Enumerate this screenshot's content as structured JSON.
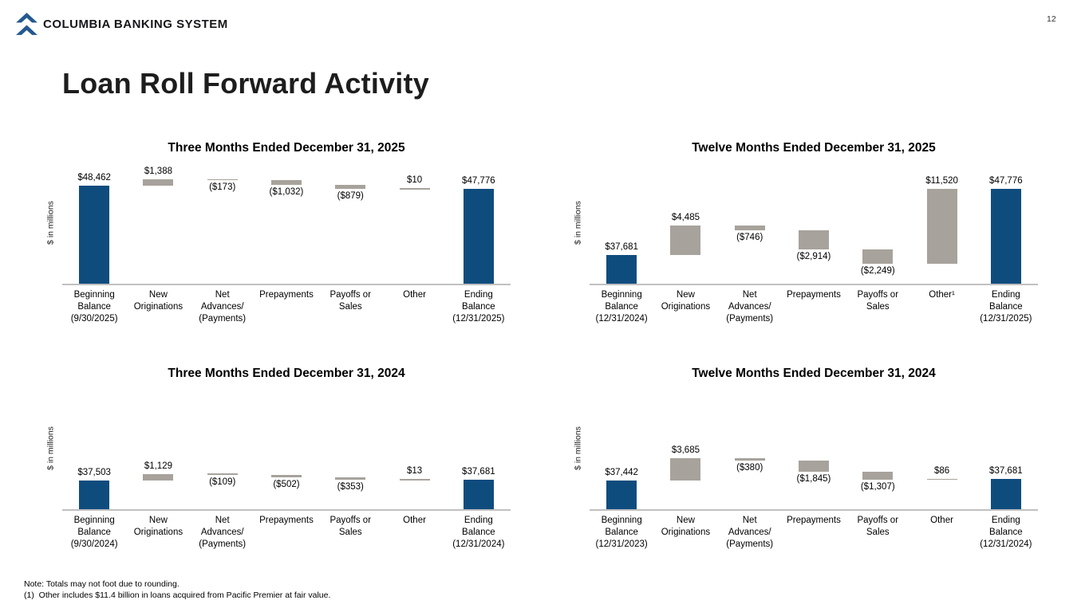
{
  "page_number": "12",
  "brand": {
    "name": "COLUMBIA BANKING SYSTEM",
    "logo_icon": "double-chevron-up"
  },
  "slide_title": "Loan Roll Forward Activity",
  "footnotes": {
    "note": "Note: Totals may not foot due to rounding.",
    "footnote_1": "(1)  Other includes $11.4 billion in loans acquired from Pacific Premier at fair value."
  },
  "colors": {
    "bar_total_blue": "#0f4c7e",
    "bar_delta_gray": "#a7a29b",
    "axis_line": "#c0c0c0",
    "logo_blue": "#24598f"
  },
  "chart_data": [
    {
      "type": "waterfall",
      "title": "Three Months Ended December 31, 2025",
      "ylabel": "$ in millions",
      "grid": false,
      "legend": false,
      "bars": [
        {
          "category_lines": [
            "Beginning",
            "Balance",
            "(9/30/2025)"
          ],
          "role": "total",
          "value": 48462,
          "label": "$48,462"
        },
        {
          "category_lines": [
            "New",
            "Originations"
          ],
          "role": "delta",
          "value": 1388,
          "label": "$1,388"
        },
        {
          "category_lines": [
            "Net",
            "Advances/",
            "(Payments)"
          ],
          "role": "delta",
          "value": -173,
          "label": "($173)"
        },
        {
          "category_lines": [
            "Prepayments"
          ],
          "role": "delta",
          "value": -1032,
          "label": "($1,032)"
        },
        {
          "category_lines": [
            "Payoffs or",
            "Sales"
          ],
          "role": "delta",
          "value": -879,
          "label": "($879)"
        },
        {
          "category_lines": [
            "Other"
          ],
          "role": "delta",
          "value": 10,
          "label": "$10"
        },
        {
          "category_lines": [
            "Ending",
            "Balance",
            "(12/31/2025)"
          ],
          "role": "total",
          "value": 47776,
          "label": "$47,776"
        }
      ]
    },
    {
      "type": "waterfall",
      "title": "Twelve Months Ended December 31, 2025",
      "ylabel": "$ in millions",
      "grid": false,
      "legend": false,
      "bars": [
        {
          "category_lines": [
            "Beginning",
            "Balance",
            "(12/31/2024)"
          ],
          "role": "total",
          "value": 37681,
          "label": "$37,681"
        },
        {
          "category_lines": [
            "New",
            "Originations"
          ],
          "role": "delta",
          "value": 4485,
          "label": "$4,485"
        },
        {
          "category_lines": [
            "Net",
            "Advances/",
            "(Payments)"
          ],
          "role": "delta",
          "value": -746,
          "label": "($746)"
        },
        {
          "category_lines": [
            "Prepayments"
          ],
          "role": "delta",
          "value": -2914,
          "label": "($2,914)"
        },
        {
          "category_lines": [
            "Payoffs or",
            "Sales"
          ],
          "role": "delta",
          "value": -2249,
          "label": "($2,249)"
        },
        {
          "category_lines": [
            "Other¹"
          ],
          "role": "delta",
          "value": 11520,
          "label": "$11,520"
        },
        {
          "category_lines": [
            "Ending",
            "Balance",
            "(12/31/2025)"
          ],
          "role": "total",
          "value": 47776,
          "label": "$47,776"
        }
      ]
    },
    {
      "type": "waterfall",
      "title": "Three Months Ended December 31, 2024",
      "ylabel": "$ in millions",
      "grid": false,
      "legend": false,
      "bars": [
        {
          "category_lines": [
            "Beginning",
            "Balance",
            "(9/30/2024)"
          ],
          "role": "total",
          "value": 37503,
          "label": "$37,503"
        },
        {
          "category_lines": [
            "New",
            "Originations"
          ],
          "role": "delta",
          "value": 1129,
          "label": "$1,129"
        },
        {
          "category_lines": [
            "Net",
            "Advances/",
            "(Payments)"
          ],
          "role": "delta",
          "value": -109,
          "label": "($109)"
        },
        {
          "category_lines": [
            "Prepayments"
          ],
          "role": "delta",
          "value": -502,
          "label": "($502)"
        },
        {
          "category_lines": [
            "Payoffs or",
            "Sales"
          ],
          "role": "delta",
          "value": -353,
          "label": "($353)"
        },
        {
          "category_lines": [
            "Other"
          ],
          "role": "delta",
          "value": 13,
          "label": "$13"
        },
        {
          "category_lines": [
            "Ending",
            "Balance",
            "(12/31/2024)"
          ],
          "role": "total",
          "value": 37681,
          "label": "$37,681"
        }
      ]
    },
    {
      "type": "waterfall",
      "title": "Twelve Months Ended December 31, 2024",
      "ylabel": "$ in millions",
      "grid": false,
      "legend": false,
      "bars": [
        {
          "category_lines": [
            "Beginning",
            "Balance",
            "(12/31/2023)"
          ],
          "role": "total",
          "value": 37442,
          "label": "$37,442"
        },
        {
          "category_lines": [
            "New",
            "Originations"
          ],
          "role": "delta",
          "value": 3685,
          "label": "$3,685"
        },
        {
          "category_lines": [
            "Net",
            "Advances/",
            "(Payments)"
          ],
          "role": "delta",
          "value": -380,
          "label": "($380)"
        },
        {
          "category_lines": [
            "Prepayments"
          ],
          "role": "delta",
          "value": -1845,
          "label": "($1,845)"
        },
        {
          "category_lines": [
            "Payoffs or",
            "Sales"
          ],
          "role": "delta",
          "value": -1307,
          "label": "($1,307)"
        },
        {
          "category_lines": [
            "Other"
          ],
          "role": "delta",
          "value": 86,
          "label": "$86"
        },
        {
          "category_lines": [
            "Ending",
            "Balance",
            "(12/31/2024)"
          ],
          "role": "total",
          "value": 37681,
          "label": "$37,681"
        }
      ]
    }
  ]
}
